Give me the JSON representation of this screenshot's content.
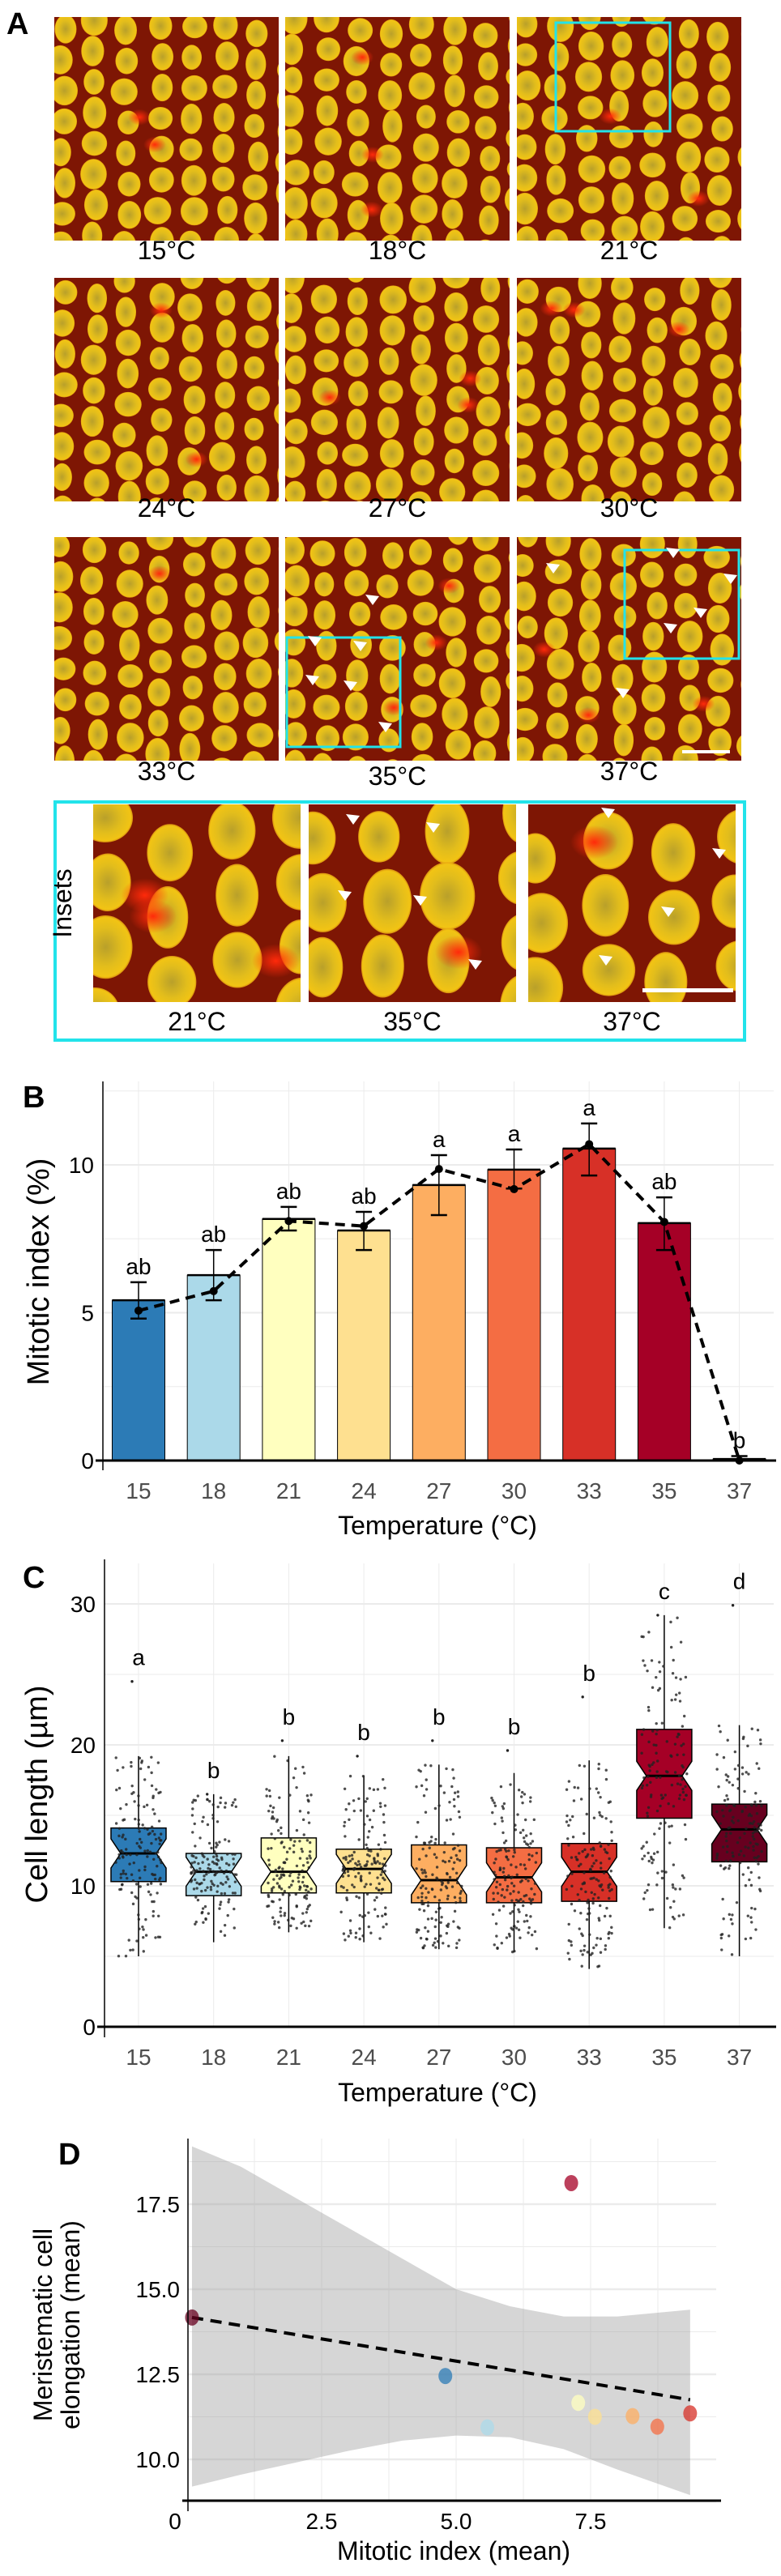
{
  "panel_a": {
    "letter": "A",
    "images": [
      {
        "label": "15°C"
      },
      {
        "label": "18°C"
      },
      {
        "label": "21°C"
      },
      {
        "label": "24°C"
      },
      {
        "label": "27°C"
      },
      {
        "label": "30°C"
      },
      {
        "label": "33°C"
      },
      {
        "label": "35°C"
      },
      {
        "label": "37°C"
      }
    ],
    "insets_title": "Insets",
    "insets": [
      {
        "label": "21°C"
      },
      {
        "label": "35°C"
      },
      {
        "label": "37°C"
      }
    ],
    "colors": {
      "inset_box": "#22e3ea",
      "background": "#7e1604",
      "nucleus": "#e6c018",
      "mitosis": "#ff2a0a"
    }
  },
  "chart_data": [
    {
      "panel": "B",
      "type": "bar",
      "title": "",
      "xlabel": "Temperature (°C)",
      "ylabel": "Mitotic index (%)",
      "categories": [
        "15",
        "18",
        "21",
        "24",
        "27",
        "30",
        "33",
        "35",
        "37"
      ],
      "values": [
        5.42,
        6.27,
        8.17,
        7.78,
        9.32,
        9.84,
        10.55,
        8.03,
        0.05
      ],
      "error_upper": [
        6.03,
        7.12,
        8.58,
        8.41,
        10.33,
        10.52,
        11.4,
        8.9,
        0.15
      ],
      "error_lower": [
        4.8,
        5.42,
        7.78,
        7.12,
        8.3,
        9.2,
        9.64,
        7.12,
        0.0
      ],
      "line_values": [
        5.07,
        5.73,
        8.1,
        7.93,
        9.86,
        9.18,
        10.7,
        8.07,
        0.0
      ],
      "letters": [
        "ab",
        "ab",
        "ab",
        "ab",
        "a",
        "a",
        "a",
        "ab",
        "b"
      ],
      "yticks": [
        "0",
        "5",
        "10"
      ],
      "ylim": [
        0,
        12.5
      ],
      "grid": true,
      "colors": [
        "#2c7bb6",
        "#abd9e9",
        "#ffffbf",
        "#fee090",
        "#fdae61",
        "#f46d43",
        "#d73027",
        "#a50026",
        "#67001f"
      ]
    },
    {
      "panel": "C",
      "type": "box",
      "xlabel": "Temperature (°C)",
      "ylabel": "Cell length (µm)",
      "categories": [
        "15",
        "18",
        "21",
        "24",
        "27",
        "30",
        "33",
        "35",
        "37"
      ],
      "median": [
        12.3,
        11.0,
        11.0,
        11.2,
        10.4,
        10.6,
        11.0,
        17.8,
        14.0
      ],
      "q1": [
        10.3,
        9.3,
        9.5,
        9.5,
        8.8,
        8.8,
        8.9,
        14.8,
        11.7
      ],
      "q3": [
        14.1,
        12.3,
        13.4,
        12.6,
        12.9,
        12.7,
        13.0,
        21.1,
        15.8
      ],
      "whisker_low": [
        5.0,
        6.0,
        6.7,
        6.0,
        5.5,
        5.3,
        4.1,
        7.0,
        5.0
      ],
      "whisker_high": [
        19.2,
        16.5,
        19.2,
        17.8,
        18.6,
        18.0,
        18.9,
        29.2,
        21.4
      ],
      "max_point": [
        24.5,
        16.5,
        20.3,
        19.2,
        20.3,
        19.6,
        23.4,
        29.2,
        29.9
      ],
      "letters": [
        "a",
        "b",
        "b",
        "b",
        "b",
        "b",
        "b",
        "c",
        "d"
      ],
      "yticks": [
        "0",
        "10",
        "20",
        "30"
      ],
      "ylim": [
        0,
        32
      ],
      "grid": true,
      "colors": [
        "#2c7bb6",
        "#abd9e9",
        "#ffffbf",
        "#fee090",
        "#fdae61",
        "#f46d43",
        "#d73027",
        "#a50026",
        "#67001f"
      ]
    },
    {
      "panel": "D",
      "type": "scatter",
      "xlabel": "Mitotic index (mean)",
      "ylabel_lines": [
        "Meristematic cell",
        "elongation (mean)"
      ],
      "points": [
        {
          "temp": "15",
          "x": 4.8,
          "y": 12.45,
          "color": "#2c7bb6"
        },
        {
          "temp": "18",
          "x": 5.58,
          "y": 10.94,
          "color": "#abd9e9"
        },
        {
          "temp": "21",
          "x": 7.27,
          "y": 11.66,
          "color": "#ffffbf"
        },
        {
          "temp": "24",
          "x": 7.58,
          "y": 11.25,
          "color": "#fee090"
        },
        {
          "temp": "27",
          "x": 8.28,
          "y": 11.27,
          "color": "#fdae61"
        },
        {
          "temp": "30",
          "x": 8.74,
          "y": 10.96,
          "color": "#f46d43"
        },
        {
          "temp": "33",
          "x": 9.35,
          "y": 11.35,
          "color": "#d73027"
        },
        {
          "temp": "35",
          "x": 7.14,
          "y": 18.12,
          "color": "#a50026"
        },
        {
          "temp": "37",
          "x": 0.09,
          "y": 14.17,
          "color": "#67001f"
        }
      ],
      "fit_line": {
        "x": [
          0.09,
          9.35
        ],
        "y": [
          14.17,
          11.75
        ],
        "style": "dashed"
      },
      "ci_x": [
        0.09,
        1,
        2,
        3,
        4,
        5,
        6,
        7,
        8,
        9.35
      ],
      "ci_upper": [
        19.2,
        18.6,
        17.7,
        16.8,
        15.9,
        15.0,
        14.5,
        14.2,
        14.2,
        14.4
      ],
      "ci_lower": [
        9.2,
        9.55,
        9.9,
        10.25,
        10.55,
        10.7,
        10.65,
        10.3,
        9.7,
        8.95
      ],
      "xticks": [
        "0",
        "2.5",
        "5.0",
        "7.5"
      ],
      "xtick_values": [
        0,
        2.5,
        5.0,
        7.5
      ],
      "yticks": [
        "10.0",
        "12.5",
        "15.0",
        "17.5"
      ],
      "ytick_values": [
        10,
        12.5,
        15,
        17.5
      ],
      "xlim": [
        0,
        9.8
      ],
      "ylim": [
        8.7,
        19.6
      ],
      "grid": true
    }
  ]
}
